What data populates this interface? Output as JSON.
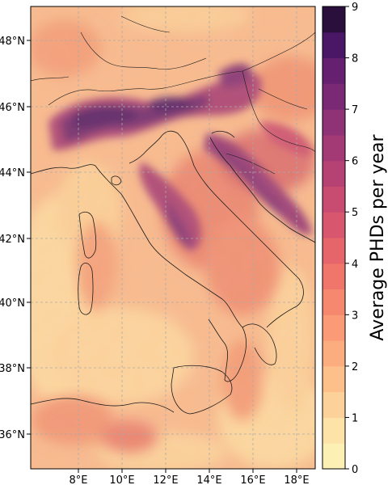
{
  "map": {
    "x_ticks": [
      "8°E",
      "10°E",
      "12°E",
      "14°E",
      "16°E",
      "18°E"
    ],
    "y_ticks": [
      "36°N",
      "38°N",
      "40°N",
      "42°N",
      "44°N",
      "46°N",
      "48°N"
    ],
    "extent": {
      "lon": [
        6.0,
        19.0
      ],
      "lat": [
        35.0,
        49.0
      ]
    },
    "gridlines": true
  },
  "colorbar": {
    "label": "Average PHDs per year",
    "ticks": [
      "0",
      "1",
      "2",
      "3",
      "4",
      "5",
      "6",
      "7",
      "8",
      "9"
    ],
    "range": [
      0,
      9
    ],
    "levels": 18,
    "colormap": "magma_r",
    "colors": [
      "#fcf0b5",
      "#fde3a7",
      "#fdd29a",
      "#fdc08b",
      "#fcad80",
      "#fa9a76",
      "#f6886f",
      "#f0766b",
      "#e6656b",
      "#d8576e",
      "#c84b71",
      "#b64273",
      "#a33a75",
      "#8f3276",
      "#7a2a75",
      "#652170",
      "#4a1766",
      "#2a0f3d"
    ]
  },
  "labels": {
    "water_color": "#f7c294",
    "land_color": "#f5b088"
  }
}
